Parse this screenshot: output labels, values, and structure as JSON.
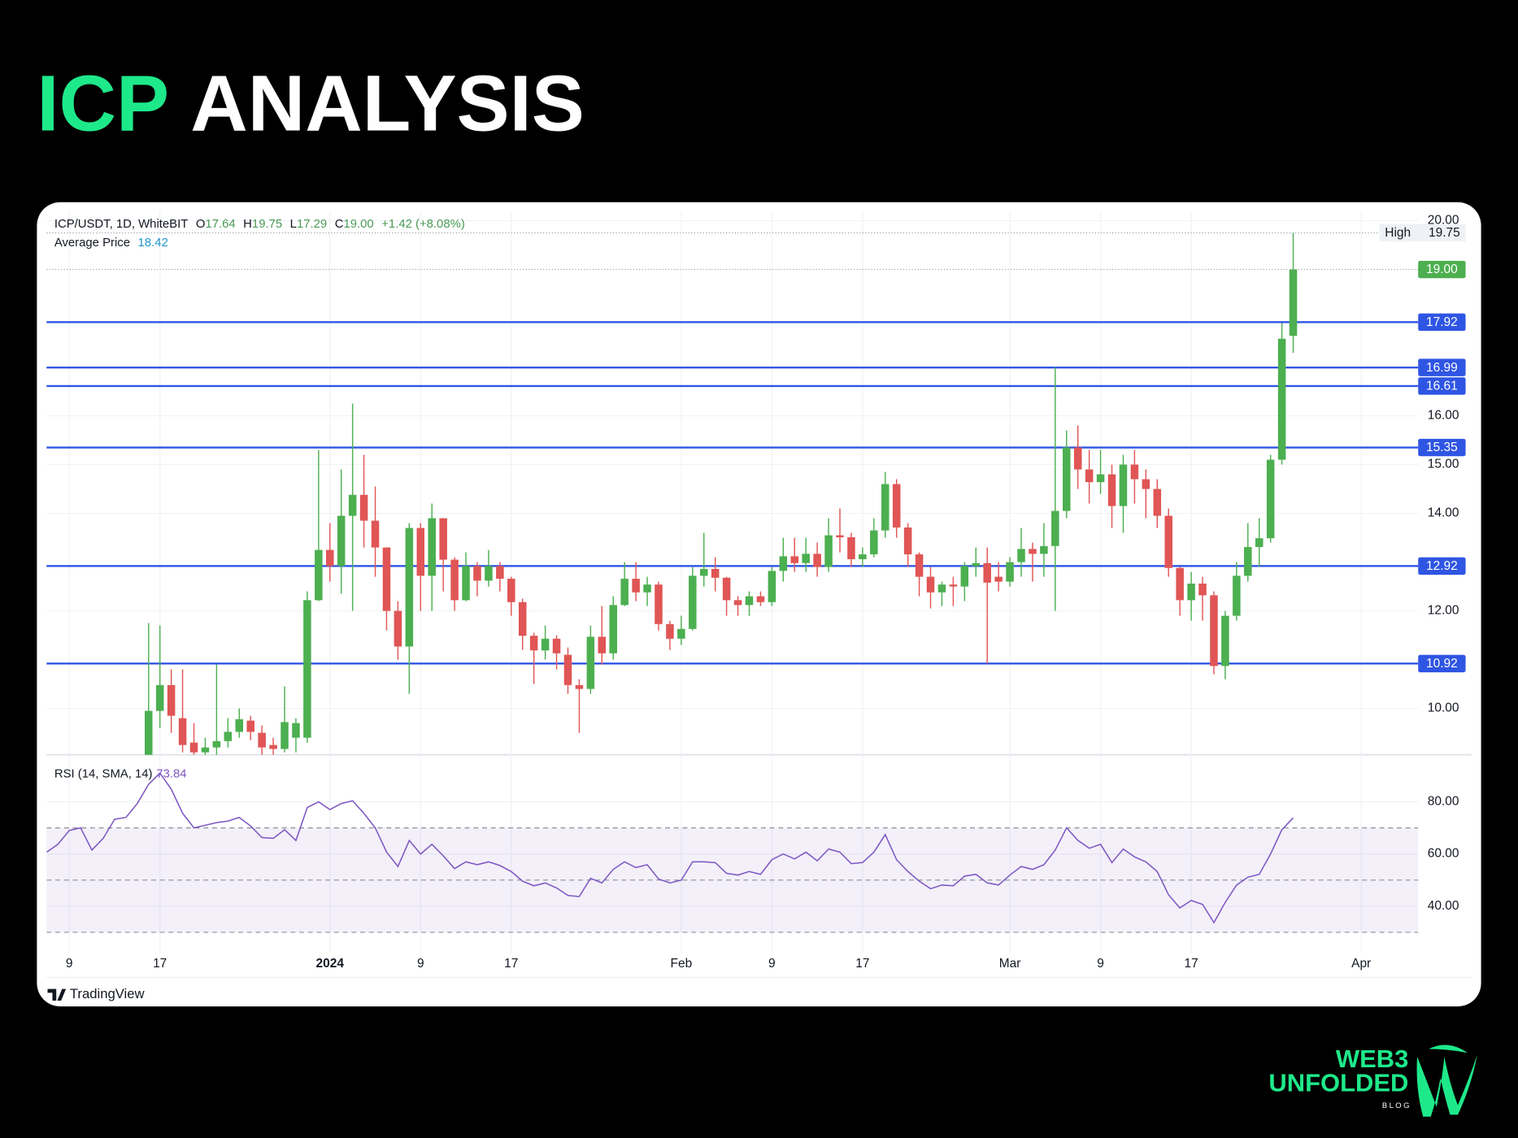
{
  "title": {
    "accent": "ICP",
    "rest": "ANALYSIS"
  },
  "chart_data": {
    "type": "candlestick",
    "legend": {
      "symbol": "ICP/USDT, 1D, WhiteBIT",
      "ohlc": [
        {
          "label": "O",
          "value": "17.64"
        },
        {
          "label": "H",
          "value": "19.75"
        },
        {
          "label": "L",
          "value": "17.29"
        },
        {
          "label": "C",
          "value": "19.00"
        }
      ],
      "change": "+1.42 (+8.08%)"
    },
    "average_price": {
      "label": "Average Price",
      "value": 18.42
    },
    "high_label": "High",
    "close_label": "19.00",
    "up_color": "#4caf50",
    "down_color": "#e05555",
    "level_color": "#2f55e4",
    "levels": [
      17.92,
      16.99,
      16.61,
      15.35,
      12.92,
      10.92
    ],
    "grid": true,
    "xlim": [
      "2023-12-07",
      "2024-04-05"
    ],
    "xticks": [
      {
        "value": "2023-12-09",
        "label": "9"
      },
      {
        "value": "2023-12-17",
        "label": "17"
      },
      {
        "value": "2024-01-01",
        "label": "2024"
      },
      {
        "value": "2024-01-09",
        "label": "9"
      },
      {
        "value": "2024-01-17",
        "label": "17"
      },
      {
        "value": "2024-02-01",
        "label": "Feb"
      },
      {
        "value": "2024-02-09",
        "label": "9"
      },
      {
        "value": "2024-02-17",
        "label": "17"
      },
      {
        "value": "2024-03-01",
        "label": "Mar"
      },
      {
        "value": "2024-03-09",
        "label": "9"
      },
      {
        "value": "2024-03-17",
        "label": "17"
      },
      {
        "value": "2024-04-01",
        "label": "Apr"
      }
    ],
    "ylim": [
      9.05,
      20.2
    ],
    "yticks": [
      {
        "value": 20,
        "label": "20.00"
      },
      {
        "value": 16,
        "label": "16.00"
      },
      {
        "value": 15,
        "label": "15.00"
      },
      {
        "value": 14,
        "label": "14.00"
      },
      {
        "value": 12,
        "label": "12.00"
      },
      {
        "value": 10,
        "label": "10.00"
      }
    ],
    "x": [
      "2023-12-07",
      "2023-12-08",
      "2023-12-09",
      "2023-12-10",
      "2023-12-11",
      "2023-12-12",
      "2023-12-13",
      "2023-12-14",
      "2023-12-15",
      "2023-12-16",
      "2023-12-17",
      "2023-12-18",
      "2023-12-19",
      "2023-12-20",
      "2023-12-21",
      "2023-12-22",
      "2023-12-23",
      "2023-12-24",
      "2023-12-25",
      "2023-12-26",
      "2023-12-27",
      "2023-12-28",
      "2023-12-29",
      "2023-12-30",
      "2023-12-31",
      "2024-01-01",
      "2024-01-02",
      "2024-01-03",
      "2024-01-04",
      "2024-01-05",
      "2024-01-06",
      "2024-01-07",
      "2024-01-08",
      "2024-01-09",
      "2024-01-10",
      "2024-01-11",
      "2024-01-12",
      "2024-01-13",
      "2024-01-14",
      "2024-01-15",
      "2024-01-16",
      "2024-01-17",
      "2024-01-18",
      "2024-01-19",
      "2024-01-20",
      "2024-01-21",
      "2024-01-22",
      "2024-01-23",
      "2024-01-24",
      "2024-01-25",
      "2024-01-26",
      "2024-01-27",
      "2024-01-28",
      "2024-01-29",
      "2024-01-30",
      "2024-01-31",
      "2024-02-01",
      "2024-02-02",
      "2024-02-03",
      "2024-02-04",
      "2024-02-05",
      "2024-02-06",
      "2024-02-07",
      "2024-02-08",
      "2024-02-09",
      "2024-02-10",
      "2024-02-11",
      "2024-02-12",
      "2024-02-13",
      "2024-02-14",
      "2024-02-15",
      "2024-02-16",
      "2024-02-17",
      "2024-02-18",
      "2024-02-19",
      "2024-02-20",
      "2024-02-21",
      "2024-02-22",
      "2024-02-23",
      "2024-02-24",
      "2024-02-25",
      "2024-02-26",
      "2024-02-27",
      "2024-02-28",
      "2024-02-29",
      "2024-03-01",
      "2024-03-02",
      "2024-03-03",
      "2024-03-04",
      "2024-03-05",
      "2024-03-06",
      "2024-03-07",
      "2024-03-08",
      "2024-03-09",
      "2024-03-10",
      "2024-03-11",
      "2024-03-12",
      "2024-03-13",
      "2024-03-14",
      "2024-03-15",
      "2024-03-16",
      "2024-03-17",
      "2024-03-18",
      "2024-03-19",
      "2024-03-20",
      "2024-03-21",
      "2024-03-22",
      "2024-03-23",
      "2024-03-24",
      "2024-03-25",
      "2024-03-26"
    ],
    "open": [
      null,
      null,
      null,
      null,
      null,
      null,
      null,
      null,
      null,
      8.9,
      9.95,
      10.48,
      9.8,
      9.3,
      9.1,
      9.2,
      9.33,
      9.52,
      9.75,
      9.5,
      9.25,
      9.17,
      9.4,
      9.4,
      12.22,
      13.25,
      12.92,
      13.95,
      14.38,
      13.85,
      13.3,
      12.0,
      11.27,
      13.7,
      12.72,
      13.9,
      13.05,
      12.22,
      12.92,
      12.62,
      12.92,
      12.66,
      12.18,
      11.49,
      11.19,
      11.43,
      11.1,
      10.48,
      10.4,
      11.47,
      11.13,
      12.12,
      12.66,
      12.38,
      12.54,
      11.73,
      11.43,
      11.63,
      12.72,
      12.86,
      12.68,
      12.22,
      12.12,
      12.3,
      12.18,
      12.82,
      13.12,
      12.98,
      13.17,
      12.9,
      13.55,
      13.51,
      13.06,
      13.16,
      13.65,
      14.6,
      13.71,
      13.16,
      12.7,
      12.38,
      12.54,
      12.5,
      12.92,
      12.98,
      12.7,
      12.6,
      13.0,
      13.27,
      13.17,
      13.33,
      14.05,
      15.35,
      14.9,
      14.64,
      14.8,
      14.15,
      15.0,
      14.7,
      14.5,
      13.95,
      12.88,
      12.22,
      12.56,
      12.32,
      10.87,
      11.9,
      12.72,
      13.31,
      13.49,
      15.1,
      17.64
    ],
    "high": [
      null,
      null,
      null,
      null,
      null,
      null,
      null,
      null,
      null,
      11.75,
      11.7,
      10.8,
      10.8,
      9.7,
      9.4,
      10.9,
      9.8,
      10.0,
      9.85,
      9.65,
      9.4,
      10.45,
      9.8,
      12.4,
      15.3,
      13.8,
      14.9,
      16.25,
      15.2,
      14.55,
      13.3,
      12.2,
      13.8,
      13.8,
      14.2,
      13.9,
      13.1,
      13.2,
      13.0,
      13.25,
      13.0,
      12.7,
      12.25,
      11.55,
      11.7,
      11.5,
      11.25,
      10.6,
      11.7,
      12.1,
      12.3,
      13.0,
      13.0,
      12.7,
      12.6,
      11.8,
      11.9,
      12.9,
      13.6,
      13.1,
      12.7,
      12.3,
      12.4,
      12.4,
      12.9,
      13.5,
      13.5,
      13.5,
      13.4,
      13.9,
      14.1,
      13.6,
      13.3,
      13.9,
      14.85,
      14.7,
      13.8,
      13.2,
      12.9,
      12.6,
      12.7,
      13.0,
      13.3,
      13.3,
      13.0,
      13.1,
      13.7,
      13.4,
      13.8,
      16.99,
      15.7,
      15.8,
      15.3,
      15.3,
      15.0,
      15.2,
      15.3,
      14.9,
      14.7,
      14.1,
      12.9,
      12.8,
      12.7,
      12.4,
      12.0,
      13.0,
      13.8,
      13.9,
      15.2,
      17.9,
      19.75
    ],
    "low": [
      null,
      null,
      null,
      null,
      null,
      null,
      null,
      null,
      null,
      8.8,
      9.6,
      9.5,
      9.1,
      9.0,
      9.0,
      9.0,
      9.2,
      9.4,
      9.35,
      9.05,
      9.05,
      9.1,
      9.1,
      9.3,
      12.2,
      12.6,
      12.35,
      12.0,
      13.3,
      12.7,
      11.6,
      11.0,
      10.3,
      12.0,
      12.0,
      12.4,
      12.0,
      12.2,
      12.3,
      12.5,
      12.4,
      11.9,
      11.2,
      10.5,
      11.0,
      10.8,
      10.3,
      9.5,
      10.3,
      10.9,
      11.0,
      12.1,
      12.2,
      12.1,
      11.6,
      11.2,
      11.3,
      11.6,
      12.5,
      12.4,
      11.9,
      11.9,
      11.9,
      12.1,
      12.1,
      12.6,
      12.8,
      12.8,
      12.7,
      12.8,
      13.2,
      12.9,
      12.9,
      13.1,
      13.5,
      13.5,
      12.9,
      12.3,
      12.05,
      12.1,
      12.1,
      12.2,
      12.7,
      10.92,
      12.4,
      12.5,
      12.7,
      12.6,
      12.7,
      12.0,
      13.9,
      14.5,
      14.2,
      14.4,
      13.7,
      13.6,
      14.2,
      13.9,
      13.7,
      12.7,
      11.9,
      11.8,
      11.8,
      10.7,
      10.6,
      11.8,
      12.6,
      12.9,
      13.4,
      15.0,
      17.29
    ],
    "close": [
      null,
      null,
      null,
      null,
      null,
      null,
      null,
      null,
      null,
      9.95,
      10.48,
      9.85,
      9.25,
      9.1,
      9.2,
      9.33,
      9.52,
      9.78,
      9.52,
      9.2,
      9.17,
      9.72,
      9.7,
      12.22,
      13.25,
      12.92,
      13.95,
      14.38,
      13.85,
      13.3,
      12.0,
      11.27,
      13.7,
      12.72,
      13.9,
      13.05,
      12.22,
      12.92,
      12.62,
      12.92,
      12.66,
      12.18,
      11.49,
      11.19,
      11.43,
      11.13,
      10.48,
      10.4,
      11.47,
      11.13,
      12.12,
      12.66,
      12.38,
      12.54,
      11.73,
      11.43,
      11.63,
      12.72,
      12.86,
      12.68,
      12.22,
      12.12,
      12.3,
      12.18,
      12.82,
      13.12,
      12.98,
      13.17,
      12.9,
      13.55,
      13.51,
      13.06,
      13.16,
      13.65,
      14.6,
      13.71,
      13.16,
      12.7,
      12.38,
      12.54,
      12.5,
      12.92,
      12.98,
      12.58,
      12.6,
      13.0,
      13.27,
      13.17,
      13.33,
      14.05,
      15.35,
      14.9,
      14.64,
      14.8,
      14.15,
      15.0,
      14.7,
      14.5,
      13.95,
      12.88,
      12.22,
      12.56,
      12.32,
      10.87,
      11.9,
      12.72,
      13.31,
      13.49,
      15.1,
      17.58,
      19.0
    ],
    "indicator": {
      "type": "line",
      "name": "RSI (14, SMA, 14)",
      "color": "#7e57c2",
      "ylim": [
        22,
        98
      ],
      "yticks": [
        {
          "value": 80,
          "label": "80.00"
        },
        {
          "value": 60,
          "label": "60.00"
        },
        {
          "value": 40,
          "label": "40.00"
        }
      ],
      "levels": [
        70,
        50,
        30
      ],
      "values": [
        60.7,
        63.7,
        69,
        70,
        61.5,
        66,
        73.3,
        74,
        79.3,
        86.7,
        91,
        84.8,
        75.6,
        70,
        71,
        72,
        72.6,
        74,
        70.7,
        66.3,
        66,
        69.3,
        65.2,
        77.8,
        80,
        77,
        79.3,
        80.4,
        75.6,
        70,
        60.7,
        55.2,
        65.2,
        60,
        63.7,
        59.3,
        54.4,
        57,
        55.9,
        57,
        55.6,
        53.3,
        49.6,
        47.8,
        48.9,
        47,
        44.1,
        43.7,
        50.7,
        48.9,
        54.1,
        57,
        54.8,
        55.9,
        50.4,
        48.9,
        50,
        57,
        57,
        56.7,
        52.6,
        51.9,
        53.3,
        52.2,
        57.8,
        60,
        58.1,
        60.7,
        57.4,
        61.9,
        60.7,
        56.3,
        56.7,
        60.7,
        67.4,
        57.8,
        53.3,
        49.6,
        46.7,
        48.1,
        47.8,
        51.5,
        52.2,
        48.9,
        48.1,
        51.9,
        55.2,
        54.1,
        55.9,
        61.5,
        70,
        65.2,
        62.2,
        63.7,
        56.7,
        61.9,
        58.9,
        57,
        53.3,
        44.4,
        39.3,
        42.2,
        40.7,
        33.7,
        41.5,
        48.1,
        51.1,
        52.2,
        60,
        69.3,
        73.84
      ]
    }
  },
  "footer": "TradingView",
  "brand": {
    "line1": "WEB3",
    "line2": "UNFOLDED",
    "line3": "BLOG"
  }
}
